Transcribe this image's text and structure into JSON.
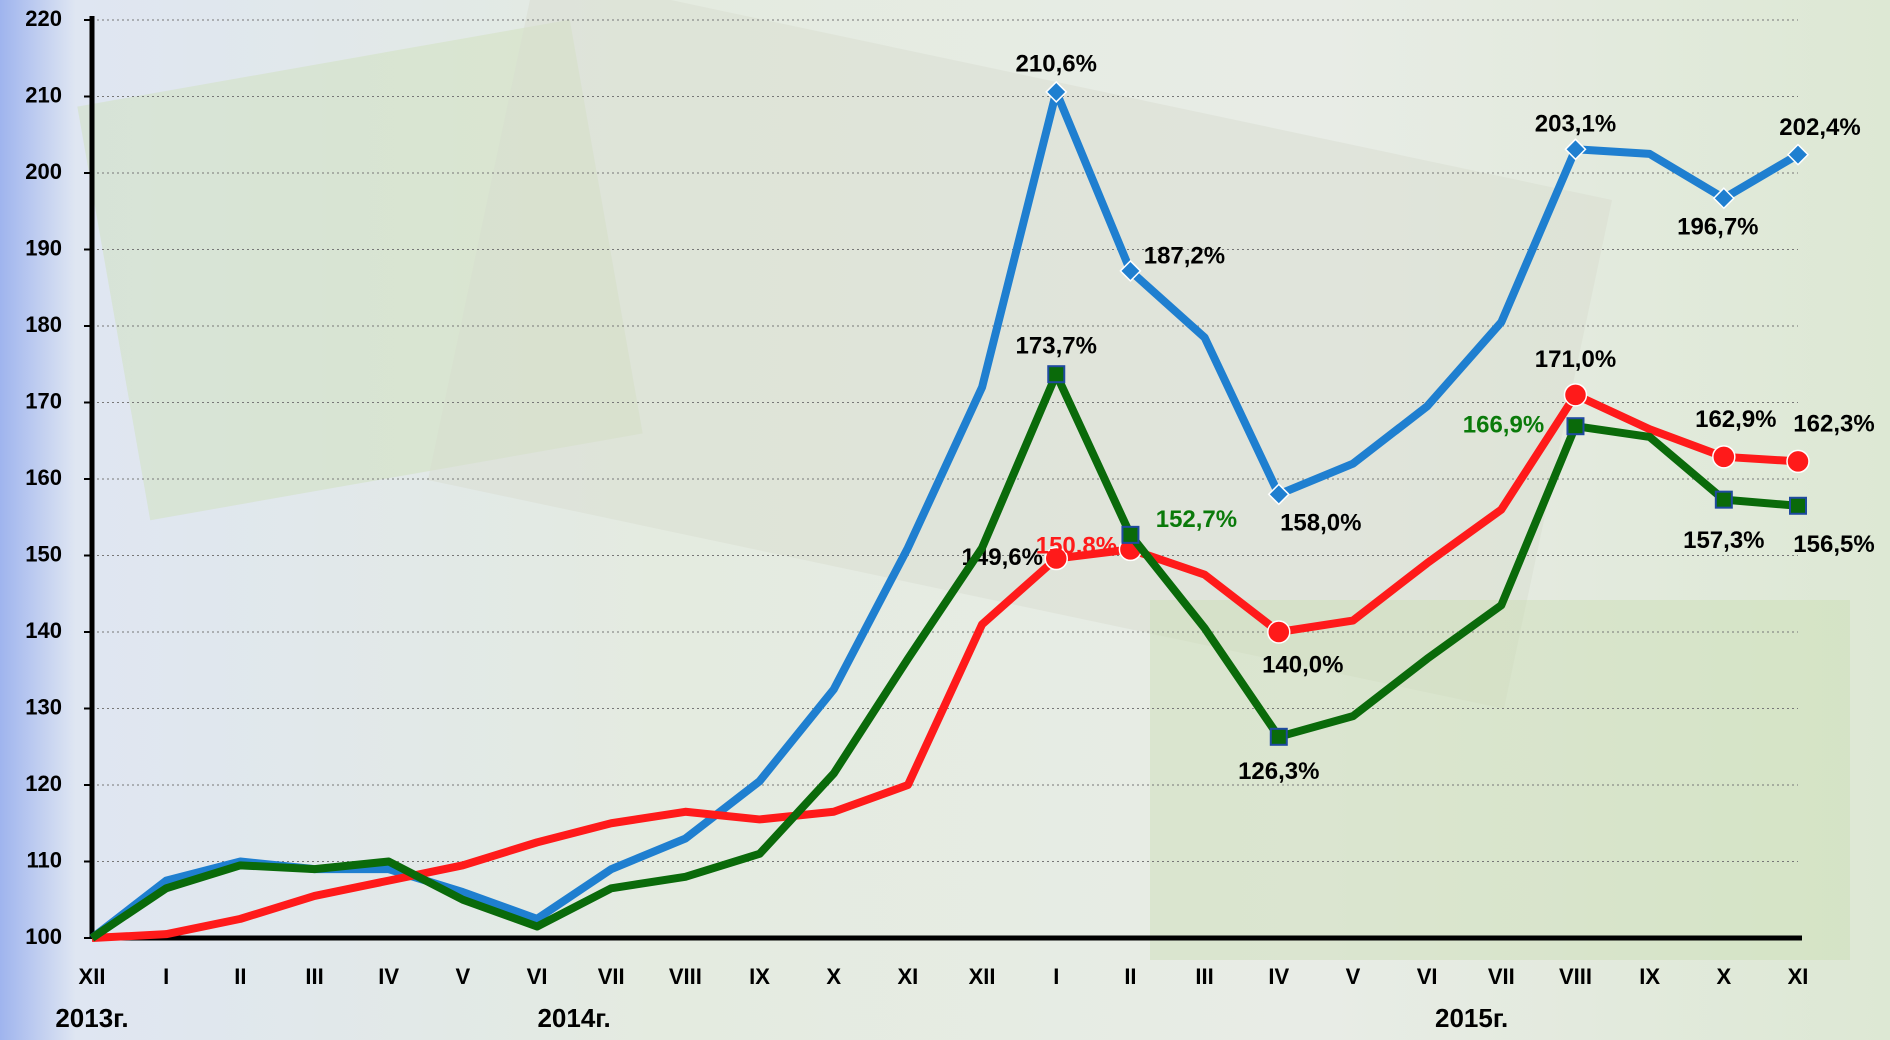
{
  "chart_data": {
    "type": "line",
    "categories": [
      "XII",
      "I",
      "II",
      "III",
      "IV",
      "V",
      "VI",
      "VII",
      "VIII",
      "IX",
      "X",
      "XI",
      "XII",
      "I",
      "II",
      "III",
      "IV",
      "V",
      "VI",
      "VII",
      "VIII",
      "IX",
      "X",
      "XI"
    ],
    "annotations": [
      {
        "text": "2013г.",
        "category_index": 0
      },
      {
        "text": "2014г.",
        "category_index": 6.5
      },
      {
        "text": "2015г.",
        "category_index": 18.6
      }
    ],
    "ylim": [
      100,
      220
    ],
    "yticks": [
      100,
      110,
      120,
      130,
      140,
      150,
      160,
      170,
      180,
      190,
      200,
      210,
      220
    ],
    "grid": true,
    "series": [
      {
        "color": "#1f7fd0",
        "marker": "diamond",
        "values": [
          100,
          107.5,
          110,
          109,
          109,
          106,
          102.5,
          109,
          113,
          120.5,
          132.5,
          151,
          172,
          210.6,
          187.2,
          178.5,
          158.0,
          162,
          169.5,
          180.5,
          203.1,
          202.5,
          196.7,
          202.4
        ],
        "value_labels": [
          null,
          null,
          null,
          null,
          null,
          null,
          null,
          null,
          null,
          null,
          null,
          null,
          null,
          "210,6%",
          "187,2%",
          null,
          "158,0%",
          null,
          null,
          null,
          "203,1%",
          null,
          "196,7%",
          "202,4%"
        ],
        "value_label_colors": [
          null,
          null,
          null,
          null,
          null,
          null,
          null,
          null,
          null,
          null,
          null,
          null,
          null,
          "#000000",
          "#000000",
          null,
          "#000000",
          null,
          null,
          null,
          "#000000",
          null,
          "#000000",
          "#000000"
        ]
      },
      {
        "color": "#ff1a1a",
        "marker": "circle",
        "values": [
          100,
          100.5,
          102.5,
          105.5,
          107.5,
          109.5,
          112.5,
          115,
          116.5,
          115.5,
          116.5,
          120,
          141,
          149.6,
          150.8,
          147.5,
          140.0,
          141.5,
          149,
          156,
          171.0,
          166.5,
          162.9,
          162.3
        ],
        "value_labels": [
          null,
          null,
          null,
          null,
          null,
          null,
          null,
          null,
          null,
          null,
          null,
          null,
          null,
          "149,6%",
          "150,8%",
          null,
          "140,0%",
          null,
          null,
          null,
          "171,0%",
          null,
          "162,9%",
          "162,3%"
        ],
        "value_label_colors": [
          null,
          null,
          null,
          null,
          null,
          null,
          null,
          null,
          null,
          null,
          null,
          null,
          null,
          "#000000",
          "#ff1a1a",
          null,
          "#000000",
          null,
          null,
          null,
          "#000000",
          null,
          "#000000",
          "#000000"
        ]
      },
      {
        "color": "#0a6a0a",
        "marker": "square",
        "values": [
          100,
          106.5,
          109.5,
          109,
          110,
          105,
          101.5,
          106.5,
          108,
          111,
          121.5,
          136.5,
          151,
          173.7,
          152.7,
          140.5,
          126.3,
          129,
          136.5,
          143.5,
          166.9,
          165.5,
          157.3,
          156.5
        ],
        "value_labels": [
          null,
          null,
          null,
          null,
          null,
          null,
          null,
          null,
          null,
          null,
          null,
          null,
          null,
          "173,7%",
          "152,7%",
          null,
          "126,3%",
          null,
          null,
          null,
          "166,9%",
          null,
          "157,3%",
          "156,5%"
        ],
        "value_label_colors": [
          null,
          null,
          null,
          null,
          null,
          null,
          null,
          null,
          null,
          null,
          null,
          null,
          null,
          "#000000",
          "#0a7a0a",
          null,
          "#000000",
          null,
          null,
          null,
          "#0a7a0a",
          null,
          "#000000",
          "#000000"
        ]
      }
    ]
  }
}
